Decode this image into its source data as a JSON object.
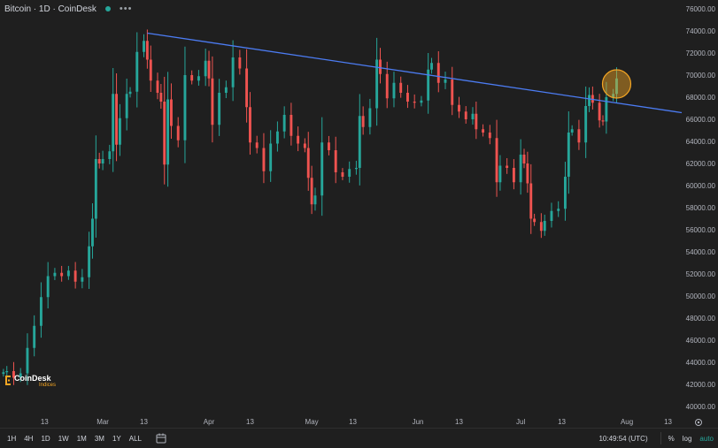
{
  "header": {
    "symbol_title": "Bitcoin · 1D · CoinDesk",
    "status_color": "#26a69a",
    "more_icon": "more-dots-icon"
  },
  "logo": {
    "name": "CoinDesk",
    "sub": "Indices",
    "accent": "#f5a623"
  },
  "toolbar": {
    "timeframes": [
      "1H",
      "4H",
      "1D",
      "1W",
      "1M",
      "3M",
      "1Y",
      "ALL"
    ],
    "date_range_icon": "calendar-icon",
    "time": "10:49:54 (UTC)",
    "percent_label": "%",
    "log_label": "log",
    "auto_label": "auto",
    "settings_icon": "gear-icon"
  },
  "chart_data": {
    "type": "candlestick",
    "title": "",
    "xlabel": "",
    "ylabel": "",
    "grid": false,
    "up_color": "#26a69a",
    "down_color": "#ef5350",
    "trendline_color": "#4c7cf3",
    "highlight_color": "#f5a623",
    "x_range": [
      "2024-01-31",
      "2024-08-17"
    ],
    "ylim": [
      39200,
      76800
    ],
    "x_tick_labels": [
      {
        "date": "2024-02-13",
        "label": "13"
      },
      {
        "date": "2024-03-01",
        "label": "Mar"
      },
      {
        "date": "2024-03-13",
        "label": "13"
      },
      {
        "date": "2024-04-01",
        "label": "Apr"
      },
      {
        "date": "2024-04-13",
        "label": "13"
      },
      {
        "date": "2024-05-01",
        "label": "May"
      },
      {
        "date": "2024-05-13",
        "label": "13"
      },
      {
        "date": "2024-06-01",
        "label": "Jun"
      },
      {
        "date": "2024-06-13",
        "label": "13"
      },
      {
        "date": "2024-07-01",
        "label": "Jul"
      },
      {
        "date": "2024-07-13",
        "label": "13"
      },
      {
        "date": "2024-08-01",
        "label": "Aug"
      },
      {
        "date": "2024-08-13",
        "label": "13"
      }
    ],
    "y_ticks": [
      40000,
      42000,
      44000,
      46000,
      48000,
      50000,
      52000,
      54000,
      56000,
      58000,
      60000,
      62000,
      64000,
      66000,
      68000,
      70000,
      72000,
      74000,
      76000
    ],
    "y_tick_labels": [
      "40000.00",
      "42000.00",
      "44000.00",
      "46000.00",
      "48000.00",
      "50000.00",
      "52000.00",
      "54000.00",
      "56000.00",
      "58000.00",
      "60000.00",
      "62000.00",
      "64000.00",
      "66000.00",
      "68000.00",
      "70000.00",
      "72000.00",
      "74000.00",
      "76000.00"
    ],
    "trendline": {
      "start": {
        "date": "2024-03-14",
        "value": 73800
      },
      "end": {
        "date": "2024-08-17",
        "value": 66600
      }
    },
    "highlight": {
      "date": "2024-07-29",
      "value": 69200
    },
    "closes": [
      {
        "date": "2024-02-01",
        "close": 43100
      },
      {
        "date": "2024-02-02",
        "close": 43200
      },
      {
        "date": "2024-02-04",
        "close": 42600
      },
      {
        "date": "2024-02-06",
        "close": 43000
      },
      {
        "date": "2024-02-08",
        "close": 45300
      },
      {
        "date": "2024-02-10",
        "close": 47300
      },
      {
        "date": "2024-02-12",
        "close": 49900
      },
      {
        "date": "2024-02-14",
        "close": 51800
      },
      {
        "date": "2024-02-16",
        "close": 52100
      },
      {
        "date": "2024-02-18",
        "close": 51800
      },
      {
        "date": "2024-02-20",
        "close": 52300
      },
      {
        "date": "2024-02-22",
        "close": 51300
      },
      {
        "date": "2024-02-24",
        "close": 51700
      },
      {
        "date": "2024-02-26",
        "close": 54500
      },
      {
        "date": "2024-02-27",
        "close": 57000
      },
      {
        "date": "2024-02-28",
        "close": 62400
      },
      {
        "date": "2024-02-29",
        "close": 62000
      },
      {
        "date": "2024-03-01",
        "close": 62400
      },
      {
        "date": "2024-03-03",
        "close": 63100
      },
      {
        "date": "2024-03-04",
        "close": 68300
      },
      {
        "date": "2024-03-05",
        "close": 63700
      },
      {
        "date": "2024-03-06",
        "close": 66100
      },
      {
        "date": "2024-03-08",
        "close": 68300
      },
      {
        "date": "2024-03-09",
        "close": 68500
      },
      {
        "date": "2024-03-11",
        "close": 72100
      },
      {
        "date": "2024-03-13",
        "close": 73100
      },
      {
        "date": "2024-03-14",
        "close": 71400
      },
      {
        "date": "2024-03-15",
        "close": 69500
      },
      {
        "date": "2024-03-17",
        "close": 68400
      },
      {
        "date": "2024-03-18",
        "close": 67600
      },
      {
        "date": "2024-03-19",
        "close": 61900
      },
      {
        "date": "2024-03-20",
        "close": 67800
      },
      {
        "date": "2024-03-21",
        "close": 65400
      },
      {
        "date": "2024-03-23",
        "close": 64100
      },
      {
        "date": "2024-03-25",
        "close": 70000
      },
      {
        "date": "2024-03-27",
        "close": 69500
      },
      {
        "date": "2024-03-29",
        "close": 69900
      },
      {
        "date": "2024-03-31",
        "close": 71300
      },
      {
        "date": "2024-04-01",
        "close": 69700
      },
      {
        "date": "2024-04-02",
        "close": 65500
      },
      {
        "date": "2024-04-04",
        "close": 68400
      },
      {
        "date": "2024-04-06",
        "close": 68900
      },
      {
        "date": "2024-04-08",
        "close": 71600
      },
      {
        "date": "2024-04-10",
        "close": 70600
      },
      {
        "date": "2024-04-12",
        "close": 67100
      },
      {
        "date": "2024-04-13",
        "close": 63900
      },
      {
        "date": "2024-04-15",
        "close": 63400
      },
      {
        "date": "2024-04-17",
        "close": 61300
      },
      {
        "date": "2024-04-19",
        "close": 63800
      },
      {
        "date": "2024-04-21",
        "close": 64900
      },
      {
        "date": "2024-04-23",
        "close": 66400
      },
      {
        "date": "2024-04-25",
        "close": 64500
      },
      {
        "date": "2024-04-27",
        "close": 63800
      },
      {
        "date": "2024-04-29",
        "close": 63400
      },
      {
        "date": "2024-04-30",
        "close": 60700
      },
      {
        "date": "2024-05-01",
        "close": 58300
      },
      {
        "date": "2024-05-02",
        "close": 59100
      },
      {
        "date": "2024-05-04",
        "close": 63900
      },
      {
        "date": "2024-05-06",
        "close": 63200
      },
      {
        "date": "2024-05-08",
        "close": 61200
      },
      {
        "date": "2024-05-10",
        "close": 60800
      },
      {
        "date": "2024-05-12",
        "close": 61500
      },
      {
        "date": "2024-05-14",
        "close": 61600
      },
      {
        "date": "2024-05-15",
        "close": 66300
      },
      {
        "date": "2024-05-16",
        "close": 65300
      },
      {
        "date": "2024-05-18",
        "close": 67000
      },
      {
        "date": "2024-05-20",
        "close": 71400
      },
      {
        "date": "2024-05-21",
        "close": 70100
      },
      {
        "date": "2024-05-23",
        "close": 67900
      },
      {
        "date": "2024-05-25",
        "close": 69300
      },
      {
        "date": "2024-05-27",
        "close": 68400
      },
      {
        "date": "2024-05-29",
        "close": 67600
      },
      {
        "date": "2024-05-31",
        "close": 67500
      },
      {
        "date": "2024-06-02",
        "close": 67700
      },
      {
        "date": "2024-06-04",
        "close": 70500
      },
      {
        "date": "2024-06-05",
        "close": 71100
      },
      {
        "date": "2024-06-07",
        "close": 69300
      },
      {
        "date": "2024-06-09",
        "close": 69600
      },
      {
        "date": "2024-06-11",
        "close": 67300
      },
      {
        "date": "2024-06-13",
        "close": 66700
      },
      {
        "date": "2024-06-15",
        "close": 66000
      },
      {
        "date": "2024-06-17",
        "close": 66500
      },
      {
        "date": "2024-06-18",
        "close": 65100
      },
      {
        "date": "2024-06-20",
        "close": 64800
      },
      {
        "date": "2024-06-22",
        "close": 64300
      },
      {
        "date": "2024-06-24",
        "close": 60300
      },
      {
        "date": "2024-06-25",
        "close": 61800
      },
      {
        "date": "2024-06-27",
        "close": 61600
      },
      {
        "date": "2024-06-29",
        "close": 60300
      },
      {
        "date": "2024-07-01",
        "close": 62800
      },
      {
        "date": "2024-07-02",
        "close": 62000
      },
      {
        "date": "2024-07-03",
        "close": 60200
      },
      {
        "date": "2024-07-04",
        "close": 57000
      },
      {
        "date": "2024-07-05",
        "close": 56700
      },
      {
        "date": "2024-07-07",
        "close": 55900
      },
      {
        "date": "2024-07-08",
        "close": 56800
      },
      {
        "date": "2024-07-10",
        "close": 57700
      },
      {
        "date": "2024-07-12",
        "close": 57900
      },
      {
        "date": "2024-07-14",
        "close": 60800
      },
      {
        "date": "2024-07-15",
        "close": 64800
      },
      {
        "date": "2024-07-16",
        "close": 65100
      },
      {
        "date": "2024-07-18",
        "close": 63900
      },
      {
        "date": "2024-07-20",
        "close": 67200
      },
      {
        "date": "2024-07-21",
        "close": 68200
      },
      {
        "date": "2024-07-22",
        "close": 67500
      },
      {
        "date": "2024-07-24",
        "close": 65900
      },
      {
        "date": "2024-07-25",
        "close": 65800
      },
      {
        "date": "2024-07-26",
        "close": 68000
      },
      {
        "date": "2024-07-28",
        "close": 68300
      },
      {
        "date": "2024-07-29",
        "close": 69700
      }
    ]
  }
}
